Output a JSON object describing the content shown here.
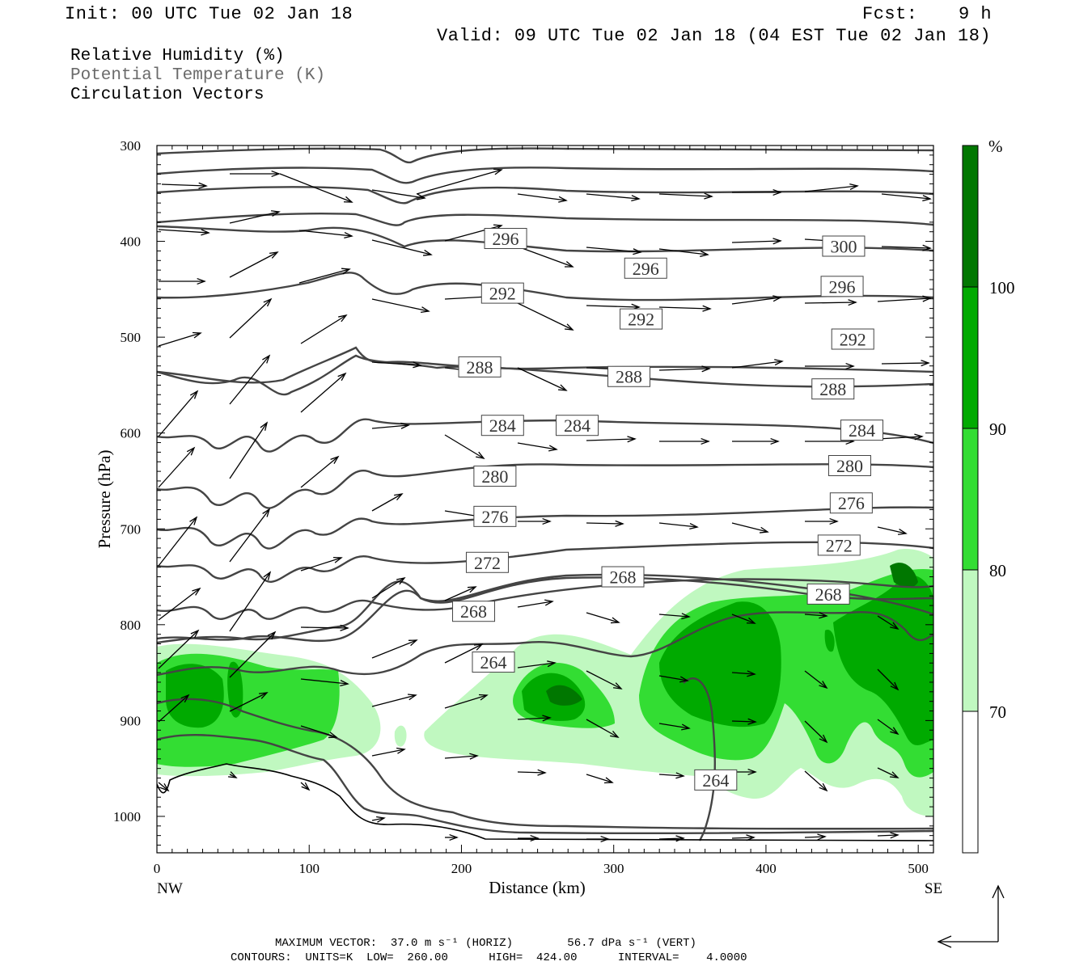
{
  "header": {
    "init": "Init: 00 UTC Tue 02 Jan 18",
    "fcst_label": "Fcst:",
    "fcst_value": "9 h",
    "valid": "Valid: 09 UTC Tue 02 Jan 18 (04 EST Tue 02 Jan 18)"
  },
  "legend": {
    "field1": "Relative Humidity (%)",
    "field2": "Potential Temperature (K)",
    "field3": "Circulation Vectors"
  },
  "footer": {
    "line1": "MAXIMUM VECTOR:  37.0 m s⁻¹ (HORIZ)        56.7 dPa s⁻¹ (VERT)",
    "line2": "CONTOURS:  UNITS=K  LOW=  260.00      HIGH=  424.00      INTERVAL=    4.0000"
  },
  "chart_data": {
    "type": "cross-section",
    "xlabel": "Distance (km)",
    "ylabel": "Pressure (hPa)",
    "x_ticks": [
      0,
      100,
      200,
      300,
      400,
      500
    ],
    "y_ticks": [
      300,
      400,
      500,
      600,
      700,
      800,
      900,
      1000
    ],
    "xlim": [
      0,
      510
    ],
    "ylim": [
      1038,
      300
    ],
    "x_end_labels": {
      "left": "NW",
      "right": "SE"
    },
    "colorbar": {
      "unit": "%",
      "levels": [
        70,
        80,
        90,
        100
      ],
      "colors": [
        "#ffffff",
        "#c0f8c0",
        "#33dd33",
        "#00aa00",
        "#007700"
      ]
    },
    "contour_labels": [
      {
        "value": "300",
        "x": 451,
        "p": 405
      },
      {
        "value": "296",
        "x": 229,
        "p": 397
      },
      {
        "value": "296",
        "x": 321,
        "p": 428
      },
      {
        "value": "296",
        "x": 450,
        "p": 447
      },
      {
        "value": "292",
        "x": 227,
        "p": 454
      },
      {
        "value": "292",
        "x": 318,
        "p": 481
      },
      {
        "value": "292",
        "x": 457,
        "p": 502
      },
      {
        "value": "288",
        "x": 212,
        "p": 531
      },
      {
        "value": "288",
        "x": 310,
        "p": 541
      },
      {
        "value": "288",
        "x": 444,
        "p": 554
      },
      {
        "value": "284",
        "x": 227,
        "p": 592
      },
      {
        "value": "284",
        "x": 276,
        "p": 592
      },
      {
        "value": "284",
        "x": 463,
        "p": 597
      },
      {
        "value": "280",
        "x": 222,
        "p": 645
      },
      {
        "value": "280",
        "x": 455,
        "p": 634
      },
      {
        "value": "276",
        "x": 222,
        "p": 687
      },
      {
        "value": "276",
        "x": 456,
        "p": 673
      },
      {
        "value": "272",
        "x": 217,
        "p": 735
      },
      {
        "value": "272",
        "x": 448,
        "p": 717
      },
      {
        "value": "268",
        "x": 208,
        "p": 786
      },
      {
        "value": "268",
        "x": 306,
        "p": 750
      },
      {
        "value": "268",
        "x": 441,
        "p": 768
      },
      {
        "value": "264",
        "x": 221,
        "p": 839
      },
      {
        "value": "264",
        "x": 367,
        "p": 962
      }
    ]
  }
}
